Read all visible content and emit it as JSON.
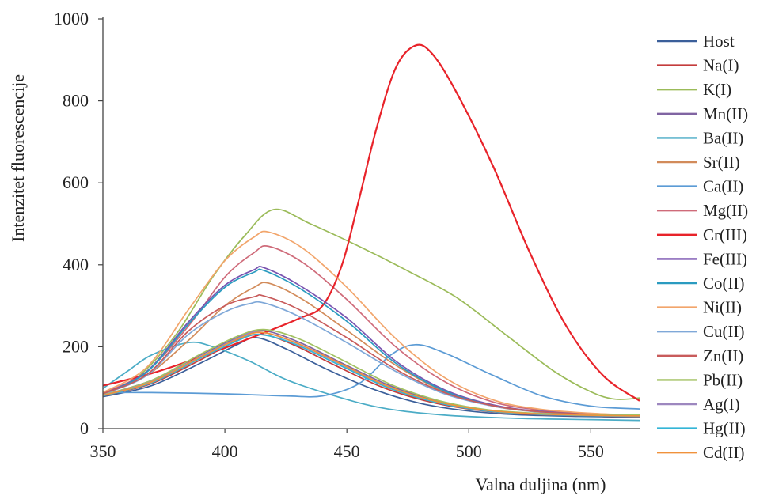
{
  "chart_data": {
    "type": "line",
    "title": "",
    "xlabel": "Valna duljina (nm)",
    "ylabel": "Intenzitet fluorescencije",
    "xlim": [
      350,
      570
    ],
    "ylim": [
      0,
      1000
    ],
    "xticks": [
      350,
      400,
      450,
      500,
      550
    ],
    "yticks": [
      0,
      200,
      400,
      600,
      800,
      1000
    ],
    "grid": false,
    "legend_position": "right",
    "series": [
      {
        "name": "Host",
        "color": "#3b5f9a",
        "points": [
          [
            350,
            78
          ],
          [
            370,
            105
          ],
          [
            390,
            160
          ],
          [
            405,
            205
          ],
          [
            413,
            222
          ],
          [
            425,
            195
          ],
          [
            440,
            150
          ],
          [
            460,
            98
          ],
          [
            480,
            62
          ],
          [
            500,
            43
          ],
          [
            520,
            34
          ],
          [
            545,
            30
          ],
          [
            570,
            28
          ]
        ]
      },
      {
        "name": "Na(I)",
        "color": "#c43c3c",
        "points": [
          [
            350,
            80
          ],
          [
            370,
            110
          ],
          [
            390,
            168
          ],
          [
            405,
            215
          ],
          [
            415,
            230
          ],
          [
            428,
            205
          ],
          [
            445,
            155
          ],
          [
            465,
            100
          ],
          [
            485,
            64
          ],
          [
            505,
            44
          ],
          [
            525,
            35
          ],
          [
            550,
            31
          ],
          [
            570,
            29
          ]
        ]
      },
      {
        "name": "K(I)",
        "color": "#9bbb59",
        "points": [
          [
            350,
            85
          ],
          [
            365,
            130
          ],
          [
            380,
            230
          ],
          [
            395,
            370
          ],
          [
            408,
            470
          ],
          [
            420,
            535
          ],
          [
            435,
            500
          ],
          [
            455,
            445
          ],
          [
            475,
            385
          ],
          [
            495,
            320
          ],
          [
            515,
            230
          ],
          [
            535,
            140
          ],
          [
            550,
            90
          ],
          [
            560,
            72
          ],
          [
            570,
            75
          ]
        ]
      },
      {
        "name": "Mn(II)",
        "color": "#8064a2",
        "points": [
          [
            350,
            82
          ],
          [
            370,
            118
          ],
          [
            390,
            180
          ],
          [
            405,
            222
          ],
          [
            415,
            240
          ],
          [
            430,
            212
          ],
          [
            448,
            160
          ],
          [
            468,
            104
          ],
          [
            488,
            66
          ],
          [
            508,
            45
          ],
          [
            530,
            35
          ],
          [
            555,
            31
          ],
          [
            570,
            30
          ]
        ]
      },
      {
        "name": "Ba(II)",
        "color": "#4bacc6",
        "points": [
          [
            350,
            98
          ],
          [
            360,
            140
          ],
          [
            370,
            180
          ],
          [
            385,
            210
          ],
          [
            395,
            200
          ],
          [
            410,
            165
          ],
          [
            425,
            120
          ],
          [
            445,
            80
          ],
          [
            465,
            50
          ],
          [
            490,
            33
          ],
          [
            520,
            25
          ],
          [
            550,
            22
          ],
          [
            570,
            20
          ]
        ]
      },
      {
        "name": "Sr(II)",
        "color": "#d28b5a",
        "points": [
          [
            350,
            84
          ],
          [
            368,
            130
          ],
          [
            385,
            215
          ],
          [
            400,
            300
          ],
          [
            412,
            345
          ],
          [
            418,
            355
          ],
          [
            432,
            315
          ],
          [
            450,
            240
          ],
          [
            470,
            155
          ],
          [
            490,
            90
          ],
          [
            510,
            55
          ],
          [
            530,
            40
          ],
          [
            555,
            32
          ],
          [
            570,
            30
          ]
        ]
      },
      {
        "name": "Ca(II)",
        "color": "#5b9bd5",
        "points": [
          [
            350,
            88
          ],
          [
            370,
            88
          ],
          [
            400,
            85
          ],
          [
            425,
            80
          ],
          [
            440,
            80
          ],
          [
            455,
            110
          ],
          [
            468,
            180
          ],
          [
            478,
            205
          ],
          [
            490,
            185
          ],
          [
            510,
            130
          ],
          [
            530,
            80
          ],
          [
            550,
            55
          ],
          [
            570,
            48
          ]
        ]
      },
      {
        "name": "Mg(II)",
        "color": "#cf6b7a",
        "points": [
          [
            350,
            86
          ],
          [
            368,
            140
          ],
          [
            385,
            250
          ],
          [
            400,
            370
          ],
          [
            412,
            430
          ],
          [
            418,
            445
          ],
          [
            432,
            405
          ],
          [
            450,
            315
          ],
          [
            470,
            200
          ],
          [
            490,
            115
          ],
          [
            510,
            65
          ],
          [
            530,
            45
          ],
          [
            555,
            35
          ],
          [
            570,
            33
          ]
        ]
      },
      {
        "name": "Cr(III)",
        "color": "#e8232a",
        "points": [
          [
            350,
            105
          ],
          [
            370,
            135
          ],
          [
            390,
            175
          ],
          [
            410,
            220
          ],
          [
            430,
            268
          ],
          [
            440,
            300
          ],
          [
            448,
            400
          ],
          [
            455,
            560
          ],
          [
            462,
            730
          ],
          [
            470,
            880
          ],
          [
            478,
            935
          ],
          [
            485,
            915
          ],
          [
            495,
            820
          ],
          [
            510,
            640
          ],
          [
            525,
            430
          ],
          [
            540,
            250
          ],
          [
            555,
            130
          ],
          [
            570,
            68
          ]
        ]
      },
      {
        "name": "Fe(III)",
        "color": "#7a54b0",
        "points": [
          [
            350,
            84
          ],
          [
            368,
            140
          ],
          [
            385,
            260
          ],
          [
            400,
            350
          ],
          [
            412,
            388
          ],
          [
            416,
            393
          ],
          [
            430,
            352
          ],
          [
            450,
            270
          ],
          [
            470,
            165
          ],
          [
            490,
            95
          ],
          [
            510,
            58
          ],
          [
            530,
            42
          ],
          [
            555,
            34
          ],
          [
            570,
            32
          ]
        ]
      },
      {
        "name": "Co(II)",
        "color": "#2a9bc0",
        "points": [
          [
            350,
            83
          ],
          [
            368,
            138
          ],
          [
            385,
            255
          ],
          [
            400,
            345
          ],
          [
            412,
            382
          ],
          [
            416,
            386
          ],
          [
            430,
            345
          ],
          [
            450,
            262
          ],
          [
            470,
            160
          ],
          [
            490,
            92
          ],
          [
            510,
            56
          ],
          [
            530,
            41
          ],
          [
            555,
            34
          ],
          [
            570,
            32
          ]
        ]
      },
      {
        "name": "Ni(II)",
        "color": "#f2a56b",
        "points": [
          [
            350,
            88
          ],
          [
            368,
            150
          ],
          [
            385,
            290
          ],
          [
            400,
            410
          ],
          [
            412,
            468
          ],
          [
            418,
            480
          ],
          [
            432,
            440
          ],
          [
            450,
            345
          ],
          [
            470,
            220
          ],
          [
            490,
            125
          ],
          [
            510,
            70
          ],
          [
            530,
            47
          ],
          [
            555,
            36
          ],
          [
            570,
            34
          ]
        ]
      },
      {
        "name": "Cu(II)",
        "color": "#7fa8d8",
        "points": [
          [
            350,
            84
          ],
          [
            368,
            130
          ],
          [
            385,
            230
          ],
          [
            400,
            285
          ],
          [
            410,
            305
          ],
          [
            416,
            307
          ],
          [
            430,
            275
          ],
          [
            450,
            210
          ],
          [
            470,
            140
          ],
          [
            490,
            85
          ],
          [
            510,
            55
          ],
          [
            530,
            40
          ],
          [
            555,
            33
          ],
          [
            570,
            31
          ]
        ]
      },
      {
        "name": "Zn(II)",
        "color": "#c85b5b",
        "points": [
          [
            350,
            85
          ],
          [
            368,
            132
          ],
          [
            385,
            238
          ],
          [
            400,
            300
          ],
          [
            412,
            322
          ],
          [
            416,
            324
          ],
          [
            430,
            292
          ],
          [
            450,
            222
          ],
          [
            470,
            145
          ],
          [
            490,
            88
          ],
          [
            510,
            56
          ],
          [
            530,
            41
          ],
          [
            555,
            34
          ],
          [
            570,
            32
          ]
        ]
      },
      {
        "name": "Pb(II)",
        "color": "#a3c263",
        "points": [
          [
            350,
            82
          ],
          [
            370,
            118
          ],
          [
            390,
            182
          ],
          [
            405,
            225
          ],
          [
            416,
            242
          ],
          [
            430,
            220
          ],
          [
            448,
            168
          ],
          [
            468,
            108
          ],
          [
            488,
            68
          ],
          [
            508,
            46
          ],
          [
            530,
            37
          ],
          [
            555,
            34
          ],
          [
            570,
            34
          ]
        ]
      },
      {
        "name": "Ag(I)",
        "color": "#9d87bf",
        "points": [
          [
            350,
            81
          ],
          [
            370,
            115
          ],
          [
            390,
            176
          ],
          [
            405,
            220
          ],
          [
            414,
            236
          ],
          [
            428,
            212
          ],
          [
            446,
            162
          ],
          [
            466,
            104
          ],
          [
            486,
            66
          ],
          [
            506,
            45
          ],
          [
            528,
            36
          ],
          [
            555,
            32
          ],
          [
            570,
            31
          ]
        ]
      },
      {
        "name": "Hg(II)",
        "color": "#33b5d6",
        "points": [
          [
            350,
            80
          ],
          [
            370,
            112
          ],
          [
            390,
            172
          ],
          [
            405,
            214
          ],
          [
            414,
            230
          ],
          [
            428,
            208
          ],
          [
            446,
            158
          ],
          [
            466,
            102
          ],
          [
            486,
            65
          ],
          [
            506,
            44
          ],
          [
            528,
            35
          ],
          [
            555,
            31
          ],
          [
            570,
            30
          ]
        ]
      },
      {
        "name": "Cd(II)",
        "color": "#f0923c",
        "points": [
          [
            350,
            81
          ],
          [
            370,
            114
          ],
          [
            390,
            175
          ],
          [
            405,
            218
          ],
          [
            415,
            235
          ],
          [
            429,
            210
          ],
          [
            447,
            160
          ],
          [
            467,
            103
          ],
          [
            487,
            66
          ],
          [
            507,
            45
          ],
          [
            529,
            36
          ],
          [
            555,
            32
          ],
          [
            570,
            31
          ]
        ]
      }
    ]
  }
}
